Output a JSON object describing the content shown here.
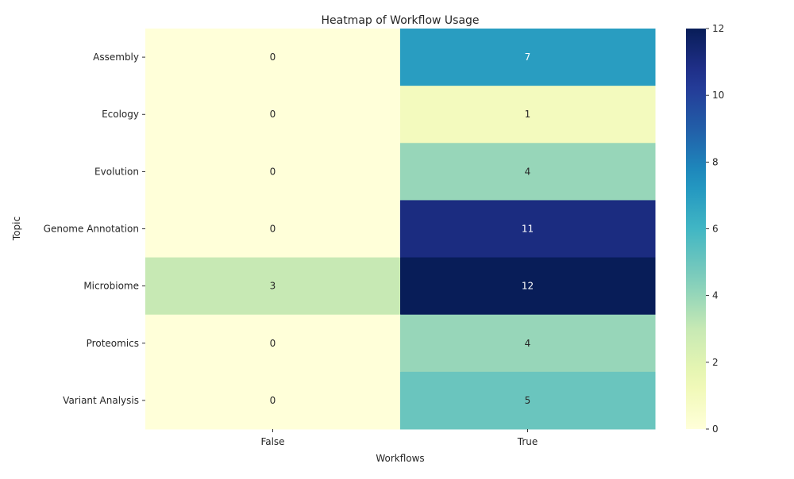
{
  "chart_data": {
    "type": "heatmap",
    "title": "Heatmap of Workflow Usage",
    "xlabel": "Workflows",
    "ylabel": "Topic",
    "columns": [
      "False",
      "True"
    ],
    "rows": [
      "Assembly",
      "Ecology",
      "Evolution",
      "Genome Annotation",
      "Microbiome",
      "Proteomics",
      "Variant Analysis"
    ],
    "values": [
      [
        0,
        7
      ],
      [
        0,
        1
      ],
      [
        0,
        4
      ],
      [
        0,
        11
      ],
      [
        3,
        12
      ],
      [
        0,
        4
      ],
      [
        0,
        5
      ]
    ],
    "colormap": "YlGnBu",
    "vmin": 0,
    "vmax": 12,
    "colorbar_ticks": [
      0,
      2,
      4,
      6,
      8,
      10,
      12
    ],
    "annotations": true
  }
}
